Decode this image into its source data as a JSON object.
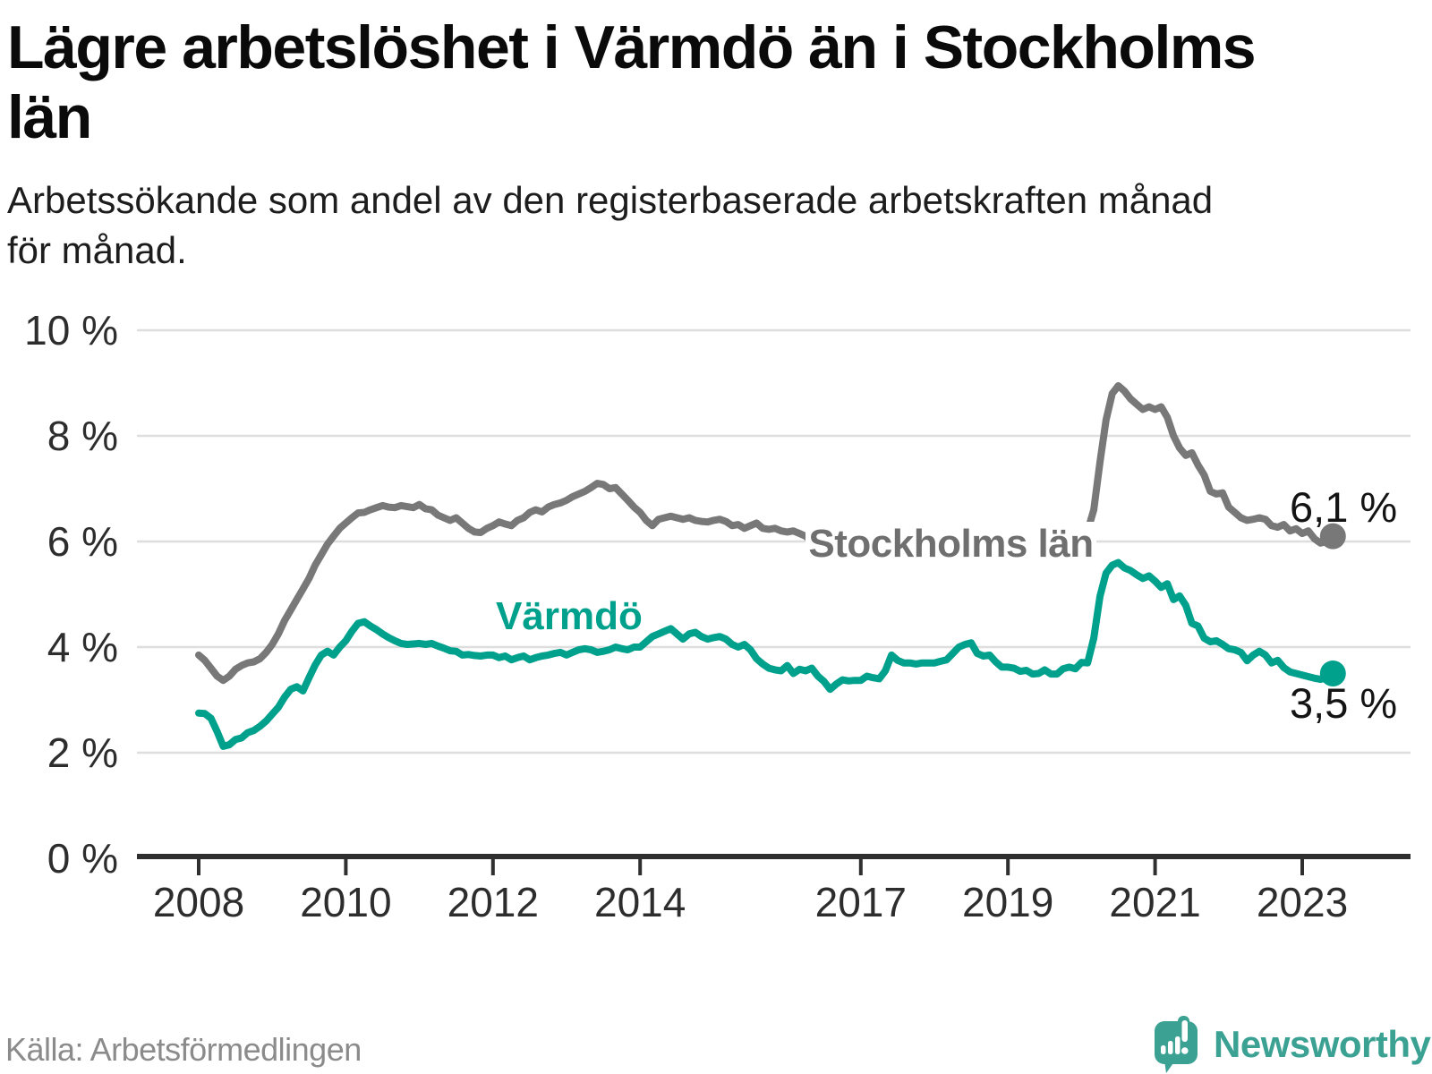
{
  "header": {
    "title": "Lägre arbetslöshet i Värmdö än i Stockholms län",
    "title_lines": [
      "Lägre arbetslöshet i Värmdö än i Stockholms",
      "län"
    ],
    "subtitle": "Arbetssökande som andel av den registerbaserade arbetskraften månad för månad.",
    "subtitle_lines": [
      "Arbetssökande som andel av den registerbaserade arbetskraften månad",
      "för månad."
    ]
  },
  "footer": {
    "source": "Källa: Arbetsförmedlingen",
    "brand": "Newsworthy",
    "brand_icon": "speech-bubble-bar-chart-icon"
  },
  "colors": {
    "stockholm_line": "#787878",
    "varmdo_line": "#00a18c",
    "grid": "#dedede",
    "axis": "#2f2f2f",
    "brand_teal": "#3ba193"
  },
  "chart_data": {
    "type": "line",
    "title": "Lägre arbetslöshet i Värmdö än i Stockholms län",
    "subtitle": "Arbetssökande som andel av den registerbaserade arbetskraften månad för månad.",
    "unit": "%",
    "frequency": "monthly",
    "x_start": "2008-01",
    "x_end": "2023-06",
    "ylim": [
      0,
      10
    ],
    "grid": "horizontal",
    "legend_position": "inline-labels",
    "y_ticks": [
      {
        "value": 10,
        "label": "10 %"
      },
      {
        "value": 8,
        "label": "8 %"
      },
      {
        "value": 6,
        "label": "6 %"
      },
      {
        "value": 4,
        "label": "4 %"
      },
      {
        "value": 2,
        "label": "2 %"
      },
      {
        "value": 0,
        "label": "0 %"
      }
    ],
    "x_ticks": [
      {
        "year": 2008,
        "label": "2008"
      },
      {
        "year": 2010,
        "label": "2010"
      },
      {
        "year": 2012,
        "label": "2012"
      },
      {
        "year": 2014,
        "label": "2014"
      },
      {
        "year": 2017,
        "label": "2017"
      },
      {
        "year": 2019,
        "label": "2019"
      },
      {
        "year": 2021,
        "label": "2021"
      },
      {
        "year": 2023,
        "label": "2023"
      }
    ],
    "series": [
      {
        "name": "Stockholms län",
        "color": "#787878",
        "end_value": 6.1,
        "end_label": "6,1 %",
        "values": [
          3.85,
          3.75,
          3.6,
          3.45,
          3.37,
          3.45,
          3.58,
          3.65,
          3.7,
          3.72,
          3.78,
          3.9,
          4.05,
          4.25,
          4.5,
          4.7,
          4.9,
          5.1,
          5.3,
          5.55,
          5.75,
          5.95,
          6.1,
          6.25,
          6.35,
          6.45,
          6.54,
          6.55,
          6.6,
          6.64,
          6.68,
          6.65,
          6.64,
          6.68,
          6.66,
          6.64,
          6.7,
          6.62,
          6.6,
          6.5,
          6.45,
          6.4,
          6.45,
          6.35,
          6.25,
          6.18,
          6.17,
          6.25,
          6.3,
          6.37,
          6.33,
          6.3,
          6.4,
          6.45,
          6.55,
          6.6,
          6.56,
          6.65,
          6.7,
          6.73,
          6.78,
          6.85,
          6.9,
          6.95,
          7.02,
          7.1,
          7.08,
          7.0,
          7.02,
          6.9,
          6.78,
          6.65,
          6.55,
          6.4,
          6.3,
          6.42,
          6.45,
          6.48,
          6.45,
          6.42,
          6.45,
          6.4,
          6.38,
          6.37,
          6.4,
          6.42,
          6.38,
          6.3,
          6.32,
          6.25,
          6.3,
          6.35,
          6.25,
          6.23,
          6.25,
          6.2,
          6.18,
          6.2,
          6.15,
          6.1,
          6.0,
          5.88,
          5.85,
          5.95,
          6.0,
          6.05,
          6.0,
          6.0,
          6.0,
          6.05,
          6.0,
          5.95,
          6.0,
          6.1,
          6.05,
          6.0,
          6.05,
          6.1,
          6.1,
          6.12,
          6.1,
          6.12,
          6.1,
          6.08,
          6.1,
          6.15,
          6.12,
          6.1,
          6.1,
          6.12,
          6.14,
          6.15,
          6.15,
          6.15,
          6.12,
          6.14,
          6.15,
          6.17,
          6.18,
          6.15,
          6.15,
          6.17,
          6.15,
          6.15,
          6.17,
          6.2,
          6.6,
          7.5,
          8.3,
          8.8,
          8.95,
          8.85,
          8.7,
          8.6,
          8.5,
          8.55,
          8.5,
          8.55,
          8.35,
          8.0,
          7.77,
          7.63,
          7.68,
          7.45,
          7.26,
          6.95,
          6.9,
          6.92,
          6.65,
          6.55,
          6.45,
          6.4,
          6.42,
          6.45,
          6.42,
          6.3,
          6.27,
          6.32,
          6.2,
          6.24,
          6.15,
          6.2,
          6.05,
          5.97,
          6.0,
          6.1
        ]
      },
      {
        "name": "Värmdö",
        "color": "#00a18c",
        "end_value": 3.5,
        "end_label": "3,5 %",
        "values": [
          2.75,
          2.74,
          2.65,
          2.4,
          2.12,
          2.15,
          2.25,
          2.28,
          2.38,
          2.42,
          2.5,
          2.6,
          2.73,
          2.86,
          3.05,
          3.2,
          3.25,
          3.17,
          3.42,
          3.66,
          3.85,
          3.92,
          3.85,
          4.0,
          4.12,
          4.3,
          4.45,
          4.48,
          4.4,
          4.33,
          4.25,
          4.18,
          4.12,
          4.07,
          4.05,
          4.06,
          4.07,
          4.05,
          4.07,
          4.02,
          3.98,
          3.93,
          3.92,
          3.85,
          3.86,
          3.84,
          3.83,
          3.85,
          3.85,
          3.8,
          3.83,
          3.76,
          3.8,
          3.83,
          3.76,
          3.8,
          3.83,
          3.85,
          3.88,
          3.9,
          3.85,
          3.9,
          3.95,
          3.97,
          3.95,
          3.9,
          3.92,
          3.95,
          4.0,
          3.97,
          3.95,
          4.0,
          4.0,
          4.1,
          4.2,
          4.25,
          4.3,
          4.35,
          4.25,
          4.15,
          4.25,
          4.28,
          4.2,
          4.15,
          4.18,
          4.2,
          4.15,
          4.05,
          4.0,
          4.05,
          3.95,
          3.78,
          3.68,
          3.6,
          3.57,
          3.55,
          3.65,
          3.5,
          3.58,
          3.55,
          3.6,
          3.45,
          3.35,
          3.2,
          3.3,
          3.38,
          3.36,
          3.37,
          3.37,
          3.45,
          3.42,
          3.4,
          3.55,
          3.85,
          3.75,
          3.7,
          3.7,
          3.68,
          3.7,
          3.7,
          3.7,
          3.73,
          3.76,
          3.88,
          4.0,
          4.05,
          4.08,
          3.88,
          3.83,
          3.85,
          3.72,
          3.62,
          3.62,
          3.6,
          3.54,
          3.56,
          3.49,
          3.5,
          3.57,
          3.49,
          3.49,
          3.59,
          3.62,
          3.59,
          3.71,
          3.7,
          4.17,
          4.96,
          5.4,
          5.55,
          5.6,
          5.5,
          5.45,
          5.37,
          5.3,
          5.35,
          5.25,
          5.13,
          5.2,
          4.9,
          4.97,
          4.79,
          4.45,
          4.4,
          4.17,
          4.1,
          4.12,
          4.05,
          3.97,
          3.95,
          3.9,
          3.74,
          3.85,
          3.92,
          3.85,
          3.7,
          3.75,
          3.61,
          3.53,
          3.5,
          3.47,
          3.44,
          3.41,
          3.39,
          3.42,
          3.5
        ]
      }
    ]
  }
}
